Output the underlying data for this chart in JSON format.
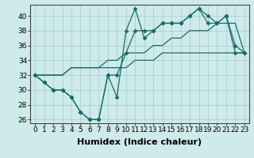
{
  "title": "",
  "xlabel": "Humidex (Indice chaleur)",
  "ylabel": "",
  "x": [
    0,
    1,
    2,
    3,
    4,
    5,
    6,
    7,
    8,
    9,
    10,
    11,
    12,
    13,
    14,
    15,
    16,
    17,
    18,
    19,
    20,
    21,
    22,
    23
  ],
  "line1": [
    32,
    31,
    30,
    30,
    29,
    27,
    26,
    26,
    32,
    29,
    38,
    41,
    37,
    38,
    39,
    39,
    39,
    40,
    41,
    39,
    39,
    40,
    35,
    35
  ],
  "line2": [
    32,
    31,
    30,
    30,
    29,
    27,
    26,
    26,
    32,
    32,
    35,
    38,
    38,
    38,
    39,
    39,
    39,
    40,
    41,
    40,
    39,
    40,
    36,
    35
  ],
  "line3": [
    32,
    32,
    32,
    32,
    33,
    33,
    33,
    33,
    34,
    34,
    35,
    35,
    35,
    36,
    36,
    37,
    37,
    38,
    38,
    38,
    39,
    39,
    39,
    35
  ],
  "line4": [
    32,
    32,
    32,
    32,
    33,
    33,
    33,
    33,
    33,
    33,
    33,
    34,
    34,
    34,
    35,
    35,
    35,
    35,
    35,
    35,
    35,
    35,
    35,
    35
  ],
  "color": "#1a6b6b",
  "bg_color": "#ceeaea",
  "grid_color": "#a8d0d0",
  "xlim": [
    -0.5,
    23.5
  ],
  "ylim": [
    25.5,
    41.5
  ],
  "yticks": [
    26,
    28,
    30,
    32,
    34,
    36,
    38,
    40
  ],
  "xticks": [
    0,
    1,
    2,
    3,
    4,
    5,
    6,
    7,
    8,
    9,
    10,
    11,
    12,
    13,
    14,
    15,
    16,
    17,
    18,
    19,
    20,
    21,
    22,
    23
  ],
  "xlabel_fontsize": 8,
  "tick_fontsize": 6.5,
  "marker": "D",
  "markersize": 2.5
}
